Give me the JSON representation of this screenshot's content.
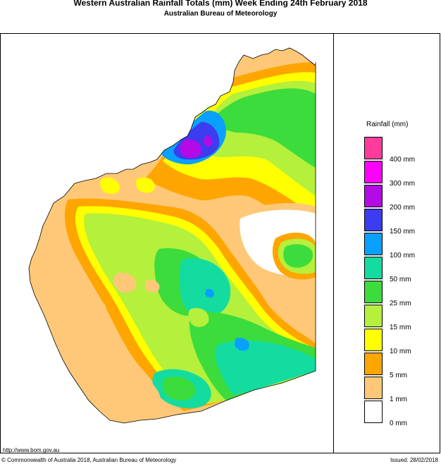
{
  "header": {
    "title": "Western Australian Rainfall Totals (mm)  Week Ending 24th February 2018",
    "subtitle": "Australian Bureau of Meteorology"
  },
  "legend": {
    "title": "Rainfall (mm)",
    "swatches": [
      {
        "color": "#ff3c9c"
      },
      {
        "color": "#ff00ff"
      },
      {
        "color": "#b40ae6"
      },
      {
        "color": "#3c3cf0"
      },
      {
        "color": "#0aa0ff"
      },
      {
        "color": "#14dca0"
      },
      {
        "color": "#3cdc3c"
      },
      {
        "color": "#b4f03c"
      },
      {
        "color": "#ffff00"
      },
      {
        "color": "#ffa500"
      },
      {
        "color": "#ffc878"
      },
      {
        "color": "#ffffff"
      }
    ],
    "ticks": [
      "400 mm",
      "300 mm",
      "200 mm",
      "150 mm",
      "100 mm",
      "50 mm",
      "25 mm",
      "15 mm",
      "10 mm",
      "5 mm",
      "1 mm",
      "0 mm"
    ]
  },
  "footer": {
    "url": "http://www.bom.gov.au",
    "copyright": "© Commonwealth of Australia 2018, Australian Bureau of Meteorology",
    "issued": "Issued: 28/02/2018"
  }
}
